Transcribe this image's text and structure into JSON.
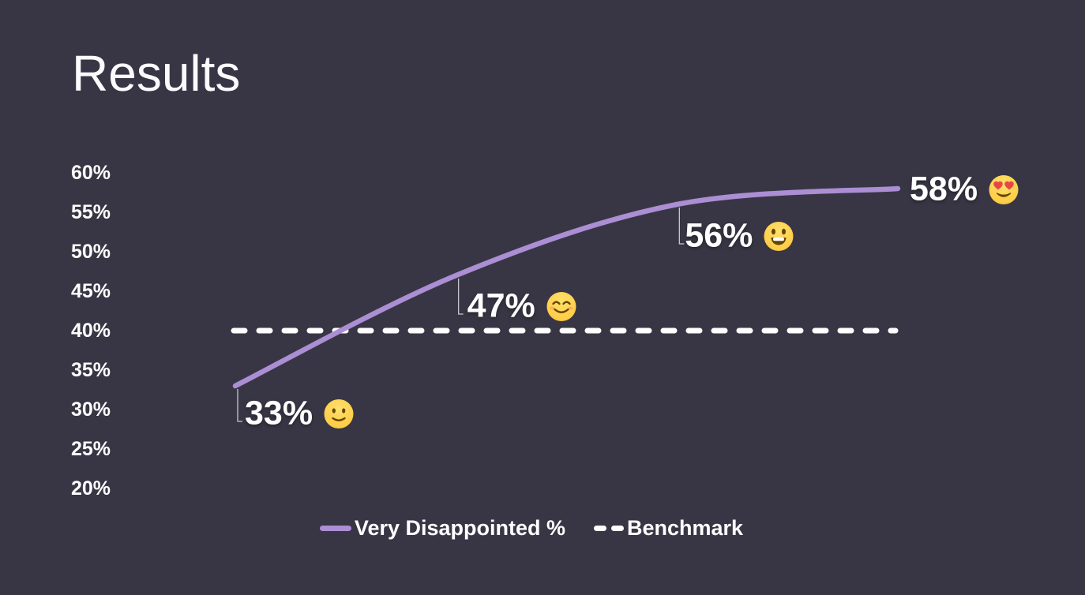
{
  "slide": {
    "title": "Results",
    "background_color": "#383644"
  },
  "chart_data": {
    "type": "line",
    "title": "Results",
    "xlabel": "",
    "ylabel": "",
    "yticks": [
      "60%",
      "55%",
      "50%",
      "45%",
      "40%",
      "35%",
      "30%",
      "25%",
      "20%"
    ],
    "ylim": [
      20,
      60
    ],
    "grid": false,
    "legend_position": "bottom",
    "series": [
      {
        "name": "Very Disappointed %",
        "style": "smooth-solid-line",
        "color": "#ab8ed3",
        "values": [
          33,
          47,
          56,
          58
        ]
      },
      {
        "name": "Benchmark",
        "style": "dashed-constant-line",
        "color": "#ffffff",
        "value": 40
      }
    ],
    "point_labels": [
      {
        "text": "33%",
        "emoji": "slightly-smiling-face"
      },
      {
        "text": "47%",
        "emoji": "smiling-face-with-smiling-eyes"
      },
      {
        "text": "56%",
        "emoji": "grinning-face-with-big-eyes"
      },
      {
        "text": "58%",
        "emoji": "smiling-face-with-heart-eyes"
      }
    ]
  },
  "legend": {
    "items": [
      {
        "label": "Very Disappointed %",
        "swatch": "solid-line",
        "color": "#ab8ed3"
      },
      {
        "label": "Benchmark",
        "swatch": "dashed-line",
        "color": "#ffffff"
      }
    ]
  }
}
